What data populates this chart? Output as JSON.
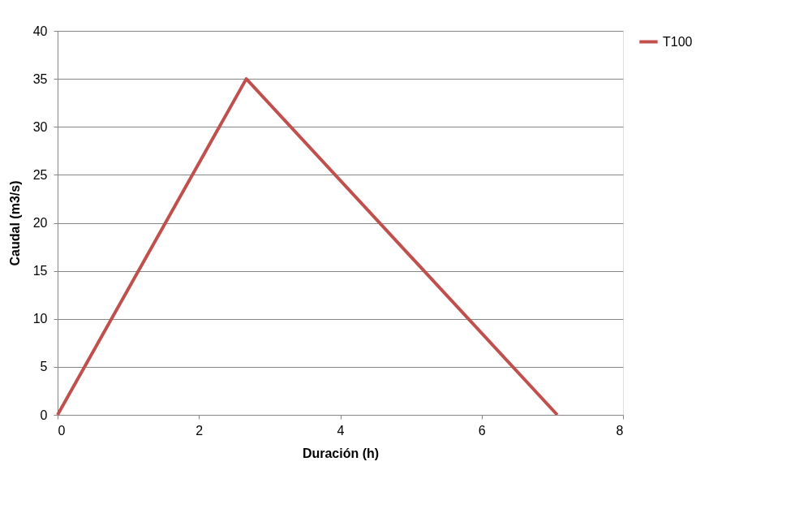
{
  "chart_data": {
    "type": "line",
    "xlabel": "Duración (h)",
    "ylabel": "Caudal (m3/s)",
    "xlim": [
      0,
      8
    ],
    "xticks": [
      0,
      2,
      4,
      6,
      8
    ],
    "ylim": [
      0,
      40
    ],
    "yticks": [
      0,
      5,
      10,
      15,
      20,
      25,
      30,
      35,
      40
    ],
    "grid": "y",
    "legend": "right",
    "marker": "none",
    "line_style": "solid",
    "series": [
      {
        "name": "T100",
        "color": "#c0504d",
        "x": [
          0,
          2.67,
          7.07
        ],
        "values": [
          0,
          35,
          0
        ]
      }
    ]
  }
}
